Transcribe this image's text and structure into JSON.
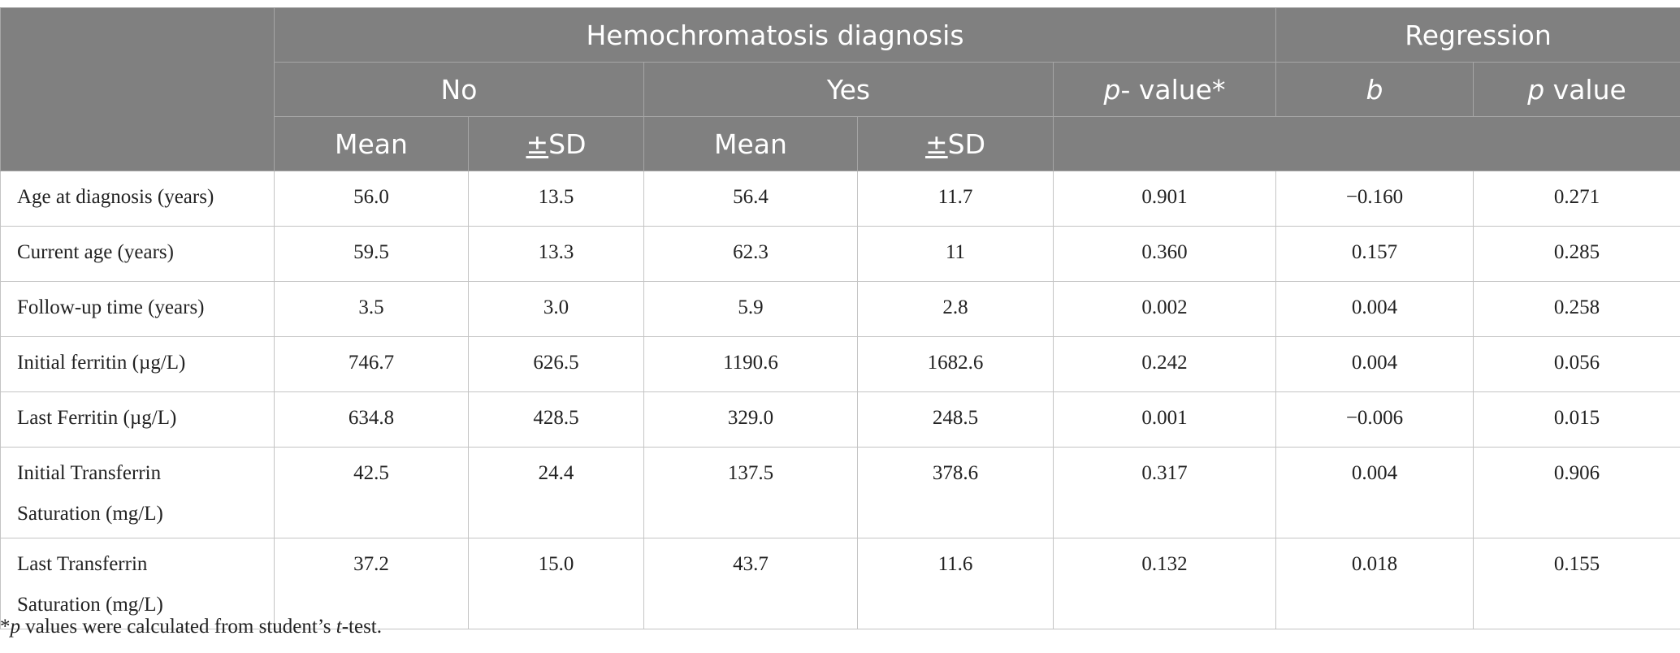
{
  "header": {
    "group1": "Hemochromatosis diagnosis",
    "group2": "Regression",
    "no": "No",
    "yes": "Yes",
    "pvalue_italic": "p",
    "pvalue_rest": "- value*",
    "b": "b",
    "reg_p_italic": "p",
    "reg_p_rest": " value",
    "mean": "Mean",
    "pm": "±",
    "sd": "SD"
  },
  "rows": [
    {
      "label": [
        "Age at diagnosis (years)"
      ],
      "values": [
        "56.0",
        "13.5",
        "56.4",
        "11.7",
        "0.901",
        "−0.160",
        "0.271"
      ]
    },
    {
      "label": [
        "Current age (years)"
      ],
      "values": [
        "59.5",
        "13.3",
        "62.3",
        "11",
        "0.360",
        "0.157",
        "0.285"
      ]
    },
    {
      "label": [
        "Follow-up time (years)"
      ],
      "values": [
        "3.5",
        "3.0",
        "5.9",
        "2.8",
        "0.002",
        "0.004",
        "0.258"
      ]
    },
    {
      "label": [
        "Initial ferritin (µg/L)"
      ],
      "values": [
        "746.7",
        "626.5",
        "1190.6",
        "1682.6",
        "0.242",
        "0.004",
        "0.056"
      ]
    },
    {
      "label": [
        "Last Ferritin (µg/L)"
      ],
      "values": [
        "634.8",
        "428.5",
        "329.0",
        "248.5",
        "0.001",
        "−0.006",
        "0.015"
      ]
    },
    {
      "label": [
        "Initial Transferrin",
        "Saturation (mg/L)"
      ],
      "values": [
        "42.5",
        "24.4",
        "137.5",
        "378.6",
        "0.317",
        "0.004",
        "0.906"
      ]
    },
    {
      "label": [
        "Last Transferrin",
        "Saturation (mg/L)"
      ],
      "values": [
        "37.2",
        "15.0",
        "43.7",
        "11.6",
        "0.132",
        "0.018",
        "0.155"
      ]
    }
  ],
  "footnote": {
    "star": "*",
    "p": "p",
    "text1": " values were calculated from student’s ",
    "t": "t",
    "text2": "-test."
  }
}
